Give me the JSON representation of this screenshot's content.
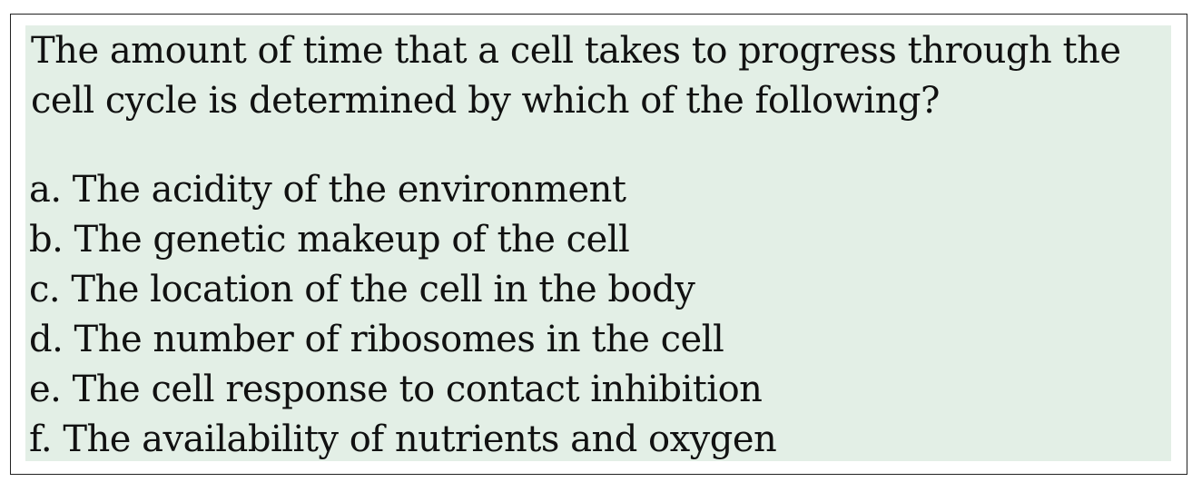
{
  "question": {
    "stem": "The amount of time that a cell takes to progress through the cell cycle is determined by which of the following?",
    "options": [
      {
        "letter": "a.",
        "text": "The acidity of the environment"
      },
      {
        "letter": "b.",
        "text": "The genetic makeup of the cell"
      },
      {
        "letter": "c.",
        "text": "The location of the cell in the body"
      },
      {
        "letter": "d.",
        "text": "The number of ribosomes in the cell"
      },
      {
        "letter": "e.",
        "text": "The cell response to contact inhibition"
      },
      {
        "letter": "f.",
        "text": "The availability of nutrients and oxygen"
      }
    ]
  },
  "colors": {
    "panel_background": "#e3efe6",
    "border": "#222222",
    "text": "#111111"
  }
}
